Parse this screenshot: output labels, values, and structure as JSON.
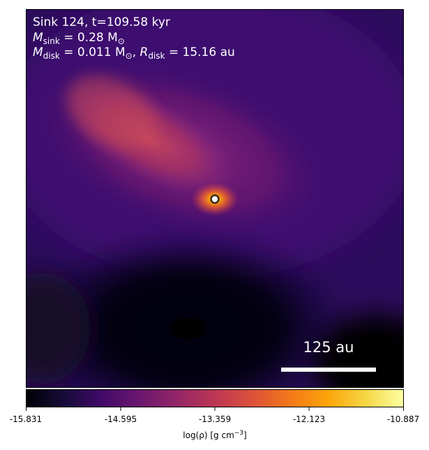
{
  "figure": {
    "annotation": {
      "line1": "Sink 124, t=109.58 kyr",
      "line2_symbol": "M",
      "line2_sub": "sink",
      "line2_rest": " = 0.28 M",
      "line2_sun": "⊙",
      "line3_symbol": "M",
      "line3_sub": "disk",
      "line3_mid": " = 0.011 M",
      "line3_sun": "⊙",
      "line3_sep": ", ",
      "line3_r": "R",
      "line3_rsub": "disk",
      "line3_rest": " = 15.16 au"
    },
    "scale_bar": {
      "label": "125 au"
    },
    "colormap": "inferno",
    "colorbar": {
      "ticks": [
        "-15.831",
        "-14.595",
        "-13.359",
        "-12.123",
        "-10.887"
      ],
      "label_prefix": "log(ρ) [g cm",
      "label_exp": "−3",
      "label_suffix": "]"
    },
    "colors": {
      "background_dark": "#000004",
      "field_purple": "#3b0f6f",
      "envelope_magenta": "#8c2981",
      "filament_orange": "#de4968",
      "core_yellow": "#fcfdbf",
      "sink_marker_edge": "#3a2a1a",
      "sink_marker_fill": "#ffffff"
    }
  }
}
